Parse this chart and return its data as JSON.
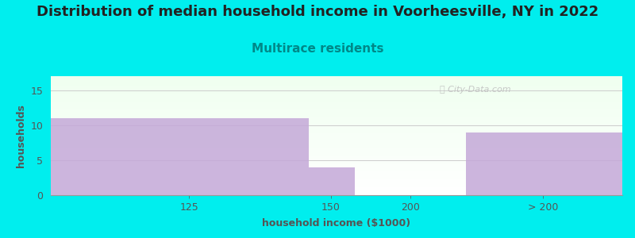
{
  "title": "Distribution of median household income in Voorheesville, NY in 2022",
  "subtitle": "Multirace residents",
  "subtitle_color": "#008888",
  "xlabel": "household income ($1000)",
  "ylabel": "households",
  "background_color": "#00eeee",
  "bar_color": "#c4a8d8",
  "grid_color": "#cccccc",
  "ylim": [
    0,
    17
  ],
  "yticks": [
    0,
    5,
    10,
    15
  ],
  "bars": [
    {
      "x_left": 0,
      "x_right": 140,
      "height": 11
    },
    {
      "x_left": 140,
      "x_right": 165,
      "height": 4
    },
    {
      "x_left": 165,
      "x_right": 225,
      "height": 0
    },
    {
      "x_left": 225,
      "x_right": 310,
      "height": 9
    }
  ],
  "xlim": [
    0,
    310
  ],
  "xtick_positions": [
    75,
    152,
    195,
    267
  ],
  "xtick_labels": [
    "125",
    "150",
    "200",
    "> 200"
  ],
  "watermark": "Ⓢ City-Data.com",
  "title_fontsize": 13,
  "subtitle_fontsize": 11,
  "label_fontsize": 9,
  "tick_fontsize": 9
}
